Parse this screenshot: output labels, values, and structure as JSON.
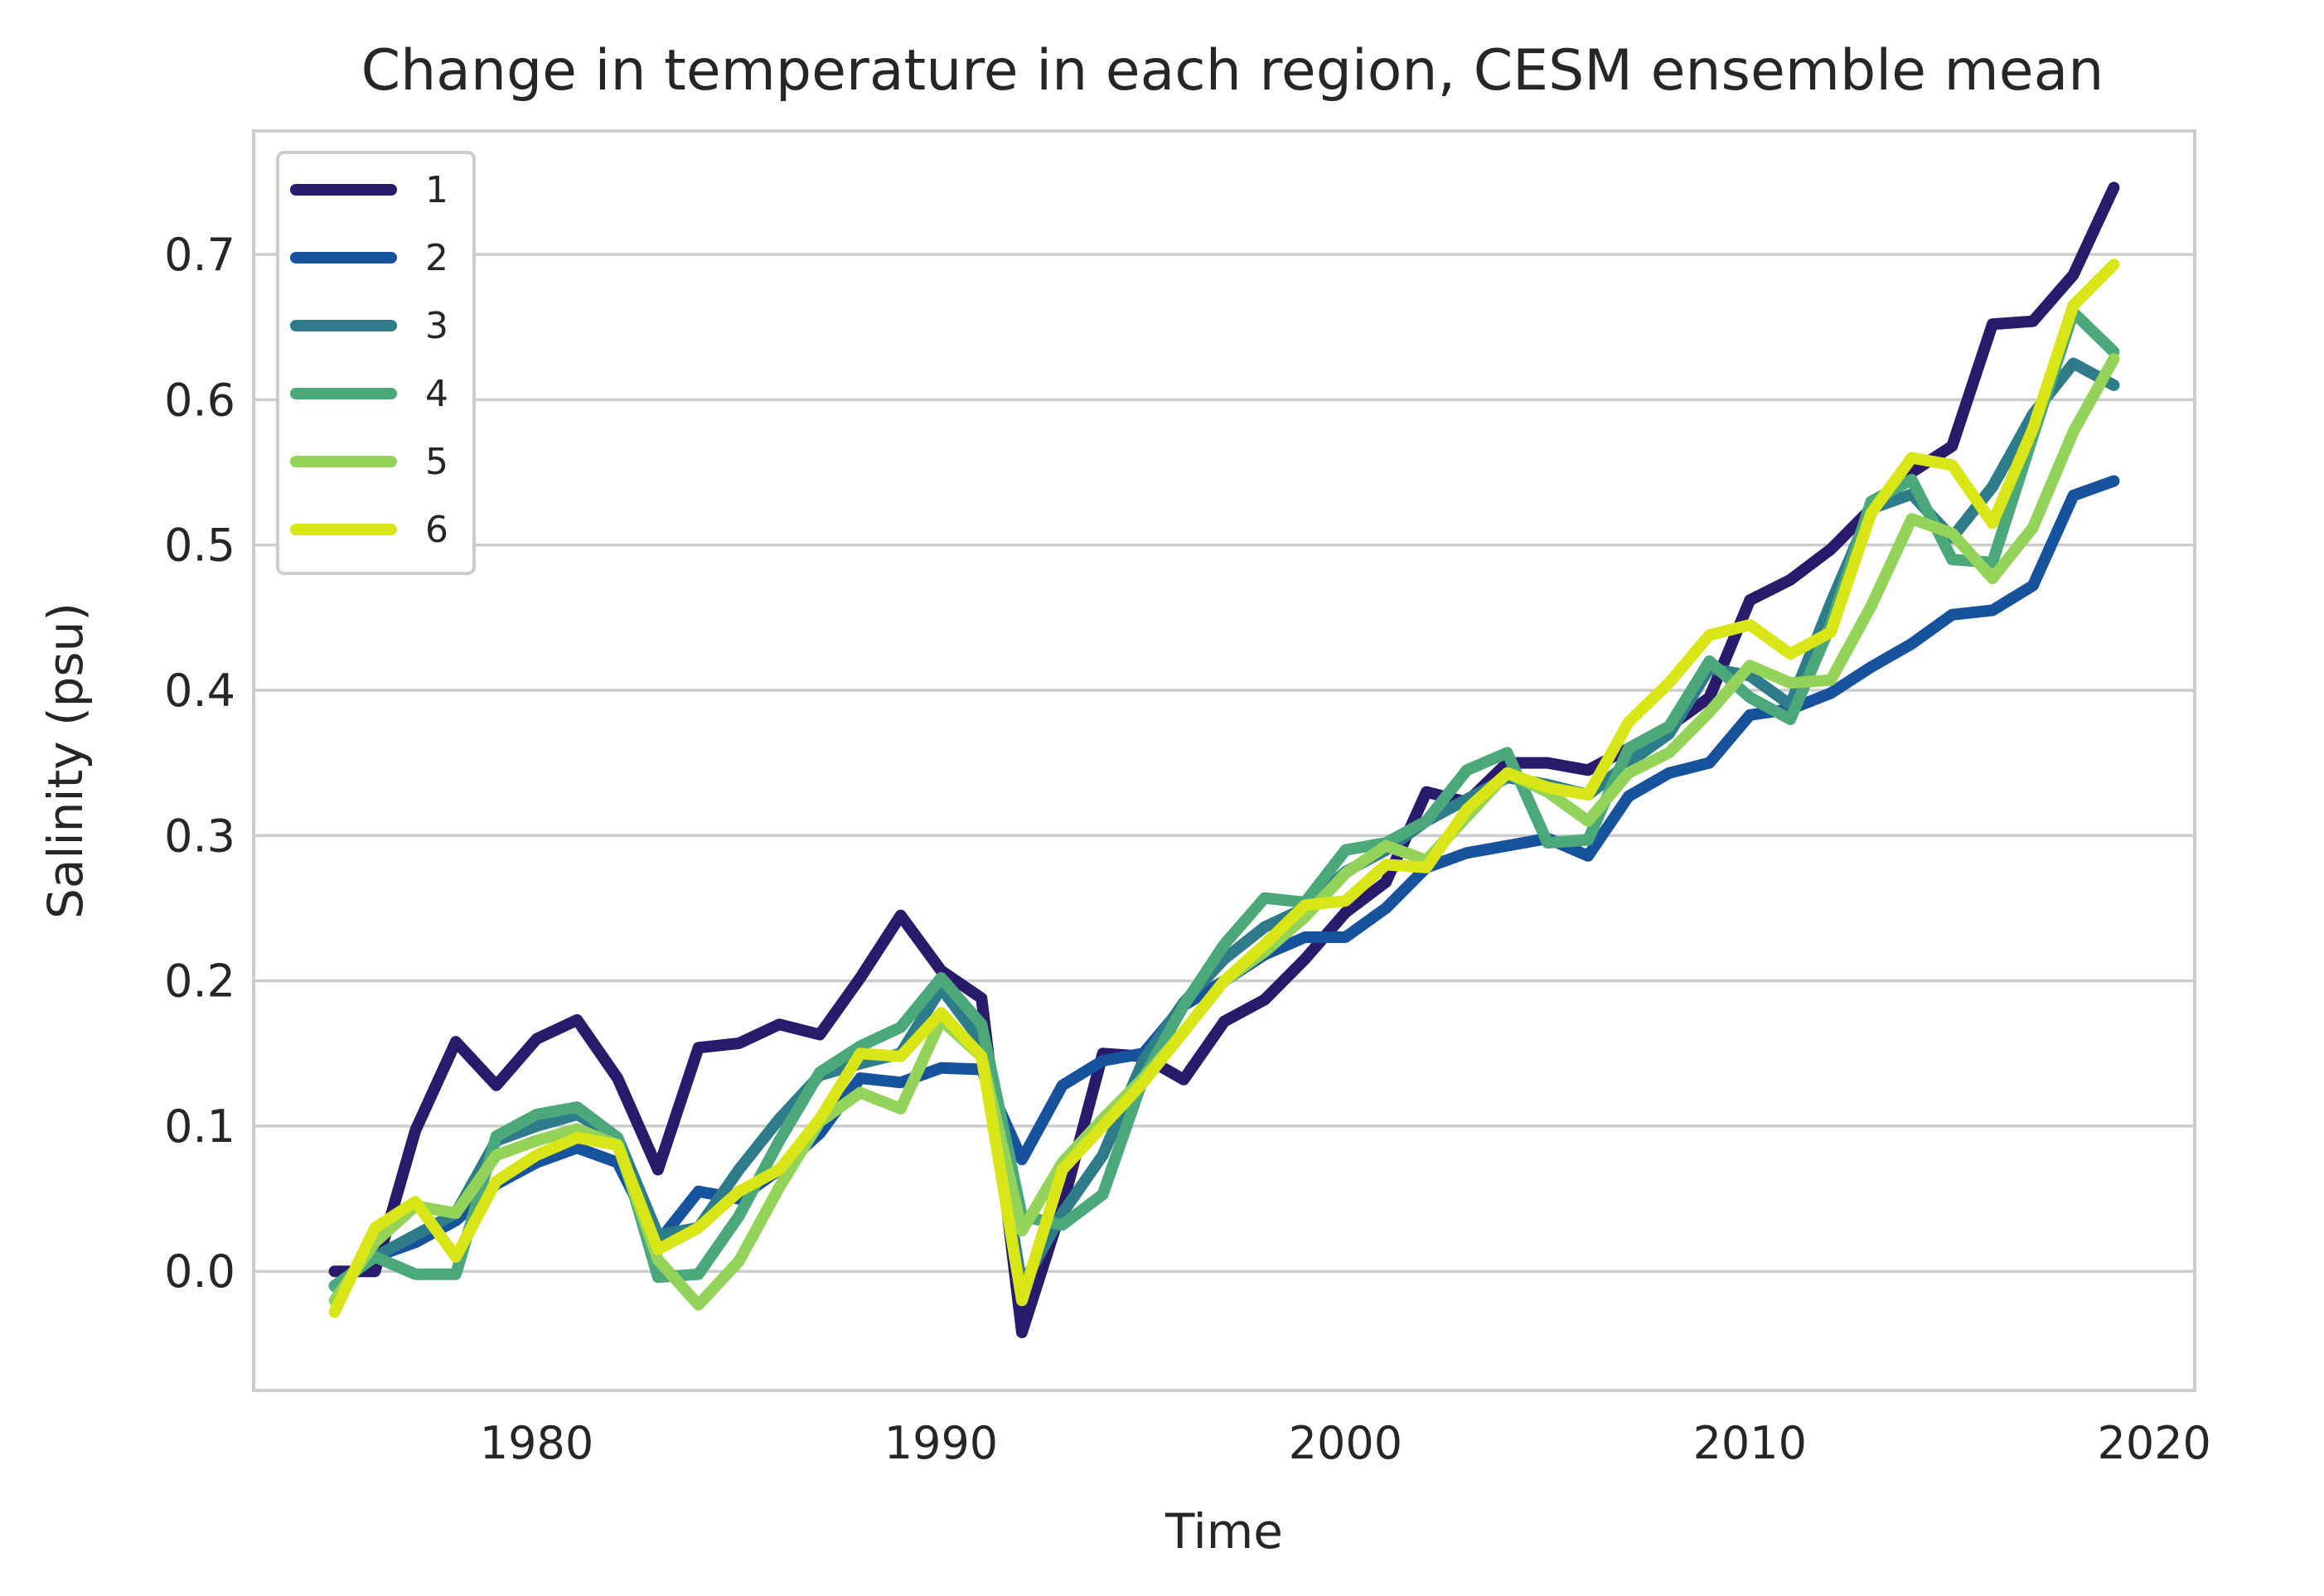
{
  "chart_data": {
    "type": "line",
    "title": "Change in temperature in each region, CESM ensemble mean",
    "xlabel": "Time",
    "ylabel": "Salinity (psu)",
    "xlim": [
      1973,
      2021
    ],
    "ylim": [
      -0.082,
      0.785
    ],
    "xticks": [
      1980,
      1990,
      2000,
      2010,
      2020
    ],
    "yticks": [
      0.0,
      0.1,
      0.2,
      0.3,
      0.4,
      0.5,
      0.6,
      0.7
    ],
    "ytick_labels": [
      "0.0",
      "0.1",
      "0.2",
      "0.3",
      "0.4",
      "0.5",
      "0.6",
      "0.7"
    ],
    "grid": "horizontal",
    "legend": "top-left",
    "x": [
      1975,
      1976,
      1977,
      1978,
      1979,
      1980,
      1981,
      1982,
      1983,
      1984,
      1985,
      1986,
      1987,
      1988,
      1989,
      1990,
      1991,
      1992,
      1993,
      1994,
      1995,
      1996,
      1997,
      1998,
      1999,
      2000,
      2001,
      2002,
      2003,
      2004,
      2005,
      2006,
      2007,
      2008,
      2009,
      2010,
      2011,
      2012,
      2013,
      2014,
      2015,
      2016,
      2017,
      2018,
      2019
    ],
    "series": [
      {
        "name": "1",
        "color": "#2a1a6c",
        "values": [
          0.0,
          0.0,
          0.097,
          0.158,
          0.128,
          0.16,
          0.173,
          0.133,
          0.07,
          0.154,
          0.157,
          0.17,
          0.163,
          0.202,
          0.245,
          0.207,
          0.188,
          -0.042,
          0.045,
          0.15,
          0.148,
          0.132,
          0.172,
          0.187,
          0.215,
          0.247,
          0.268,
          0.33,
          0.323,
          0.35,
          0.35,
          0.345,
          0.36,
          0.375,
          0.395,
          0.462,
          0.476,
          0.497,
          0.525,
          0.55,
          0.568,
          0.652,
          0.654,
          0.686,
          0.746
        ]
      },
      {
        "name": "2",
        "color": "#17539c",
        "values": [
          -0.01,
          0.01,
          0.02,
          0.035,
          0.06,
          0.075,
          0.085,
          0.075,
          0.02,
          0.055,
          0.05,
          0.07,
          0.095,
          0.133,
          0.13,
          0.14,
          0.139,
          0.077,
          0.128,
          0.145,
          0.15,
          0.183,
          0.2,
          0.218,
          0.23,
          0.23,
          0.25,
          0.278,
          0.288,
          0.293,
          0.298,
          0.286,
          0.327,
          0.343,
          0.35,
          0.383,
          0.387,
          0.398,
          0.416,
          0.432,
          0.452,
          0.455,
          0.472,
          0.534,
          0.544
        ]
      },
      {
        "name": "3",
        "color": "#2e7b8a",
        "values": [
          -0.01,
          0.01,
          0.025,
          0.04,
          0.09,
          0.1,
          0.108,
          0.092,
          0.025,
          0.03,
          0.07,
          0.105,
          0.135,
          0.143,
          0.15,
          0.195,
          0.158,
          -0.01,
          0.04,
          0.08,
          0.145,
          0.185,
          0.215,
          0.237,
          0.25,
          0.275,
          0.29,
          0.31,
          0.325,
          0.34,
          0.335,
          0.328,
          0.35,
          0.37,
          0.415,
          0.41,
          0.39,
          0.46,
          0.525,
          0.535,
          0.505,
          0.54,
          0.59,
          0.625,
          0.61
        ]
      },
      {
        "name": "4",
        "color": "#4aa87b",
        "values": [
          -0.01,
          0.01,
          -0.002,
          -0.002,
          0.093,
          0.108,
          0.113,
          0.092,
          -0.004,
          -0.002,
          0.038,
          0.09,
          0.137,
          0.155,
          0.168,
          0.202,
          0.17,
          0.038,
          0.032,
          0.053,
          0.133,
          0.183,
          0.225,
          0.257,
          0.254,
          0.29,
          0.295,
          0.31,
          0.345,
          0.357,
          0.295,
          0.297,
          0.36,
          0.375,
          0.42,
          0.395,
          0.38,
          0.445,
          0.53,
          0.545,
          0.49,
          0.488,
          0.575,
          0.66,
          0.633
        ]
      },
      {
        "name": "5",
        "color": "#93d35a",
        "values": [
          -0.02,
          0.02,
          0.045,
          0.04,
          0.08,
          0.09,
          0.098,
          0.087,
          0.008,
          -0.023,
          0.007,
          0.058,
          0.103,
          0.123,
          0.112,
          0.173,
          0.148,
          0.028,
          0.075,
          0.105,
          0.133,
          0.165,
          0.2,
          0.22,
          0.244,
          0.274,
          0.293,
          0.283,
          0.313,
          0.343,
          0.33,
          0.31,
          0.343,
          0.357,
          0.385,
          0.417,
          0.405,
          0.407,
          0.458,
          0.518,
          0.508,
          0.477,
          0.512,
          0.578,
          0.628
        ]
      },
      {
        "name": "6",
        "color": "#d8e617",
        "values": [
          -0.028,
          0.03,
          0.048,
          0.01,
          0.062,
          0.08,
          0.092,
          0.087,
          0.015,
          0.03,
          0.055,
          0.07,
          0.105,
          0.15,
          0.148,
          0.178,
          0.148,
          -0.02,
          0.07,
          0.1,
          0.13,
          0.165,
          0.2,
          0.225,
          0.252,
          0.255,
          0.28,
          0.278,
          0.318,
          0.343,
          0.333,
          0.328,
          0.378,
          0.405,
          0.438,
          0.445,
          0.425,
          0.44,
          0.522,
          0.56,
          0.555,
          0.515,
          0.58,
          0.665,
          0.693
        ]
      }
    ]
  }
}
